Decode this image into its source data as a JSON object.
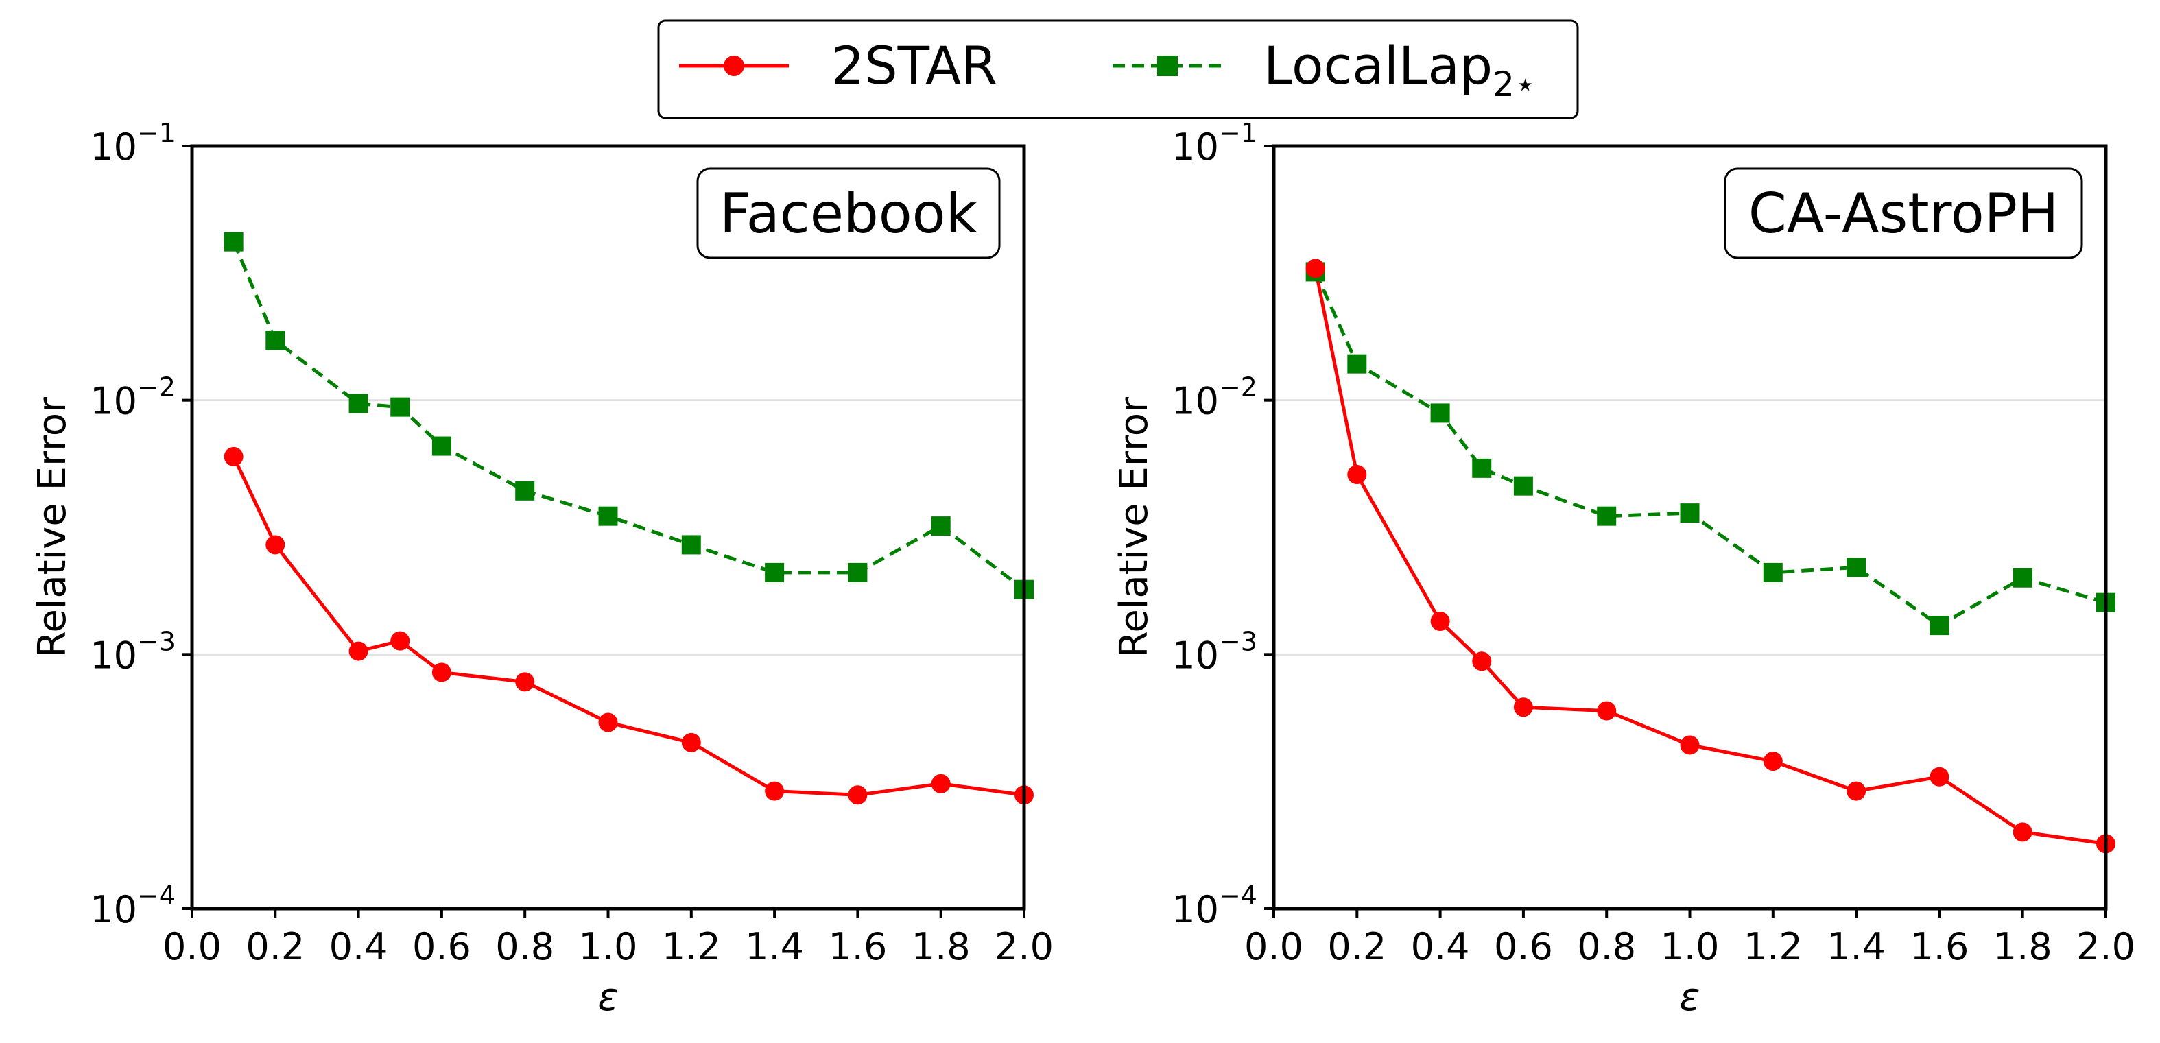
{
  "legend": {
    "placement": "top-center",
    "entries": [
      {
        "label": "2STAR",
        "color": "#ff0000",
        "marker": "circle",
        "line": "solid"
      },
      {
        "label": "LocalLap",
        "sub": "2⋆",
        "color": "#008000",
        "marker": "square",
        "line": "dashed"
      }
    ]
  },
  "chart_data": [
    {
      "type": "line",
      "title": "Facebook",
      "xlabel": "ε",
      "ylabel": "Relative Error",
      "xlim": [
        0.0,
        2.0
      ],
      "ylim": [
        0.0001,
        0.1
      ],
      "yscale": "log",
      "grid": "y-major",
      "x_ticks": [
        "0.0",
        "0.2",
        "0.4",
        "0.6",
        "0.8",
        "1.0",
        "1.2",
        "1.4",
        "1.6",
        "1.8",
        "2.0"
      ],
      "y_ticks": [
        {
          "base": "10",
          "exp": "−1"
        },
        {
          "base": "10",
          "exp": "−2"
        },
        {
          "base": "10",
          "exp": "−3"
        },
        {
          "base": "10",
          "exp": "−4"
        }
      ],
      "x": [
        0.1,
        0.2,
        0.4,
        0.5,
        0.6,
        0.8,
        1.0,
        1.2,
        1.4,
        1.6,
        1.8,
        2.0
      ],
      "series": [
        {
          "name": "2STAR",
          "color": "#ff0000",
          "values": [
            0.006,
            0.0027,
            0.00103,
            0.00113,
            0.00085,
            0.00078,
            0.00054,
            0.00045,
            0.00029,
            0.00028,
            0.00031,
            0.00028
          ]
        },
        {
          "name": "LocalLap2⋆",
          "color": "#008000",
          "values": [
            0.042,
            0.0172,
            0.0097,
            0.0094,
            0.0066,
            0.0044,
            0.0035,
            0.0027,
            0.0021,
            0.0021,
            0.0032,
            0.0018
          ]
        }
      ]
    },
    {
      "type": "line",
      "title": "CA-AstroPH",
      "xlabel": "ε",
      "ylabel": "Relative Error",
      "xlim": [
        0.0,
        2.0
      ],
      "ylim": [
        0.0001,
        0.1
      ],
      "yscale": "log",
      "grid": "y-major",
      "x_ticks": [
        "0.0",
        "0.2",
        "0.4",
        "0.6",
        "0.8",
        "1.0",
        "1.2",
        "1.4",
        "1.6",
        "1.8",
        "2.0"
      ],
      "y_ticks": [
        {
          "base": "10",
          "exp": "−1"
        },
        {
          "base": "10",
          "exp": "−2"
        },
        {
          "base": "10",
          "exp": "−3"
        },
        {
          "base": "10",
          "exp": "−4"
        }
      ],
      "x": [
        0.1,
        0.2,
        0.4,
        0.5,
        0.6,
        0.8,
        1.0,
        1.2,
        1.4,
        1.6,
        1.8,
        2.0
      ],
      "series": [
        {
          "name": "2STAR",
          "color": "#ff0000",
          "values": [
            0.033,
            0.0051,
            0.00135,
            0.00094,
            0.00062,
            0.0006,
            0.00044,
            0.00038,
            0.00029,
            0.00033,
            0.0002,
            0.00018
          ]
        },
        {
          "name": "LocalLap2⋆",
          "color": "#008000",
          "values": [
            0.032,
            0.0139,
            0.0089,
            0.0054,
            0.0046,
            0.0035,
            0.0036,
            0.0021,
            0.0022,
            0.0013,
            0.002,
            0.0016
          ]
        }
      ]
    }
  ]
}
